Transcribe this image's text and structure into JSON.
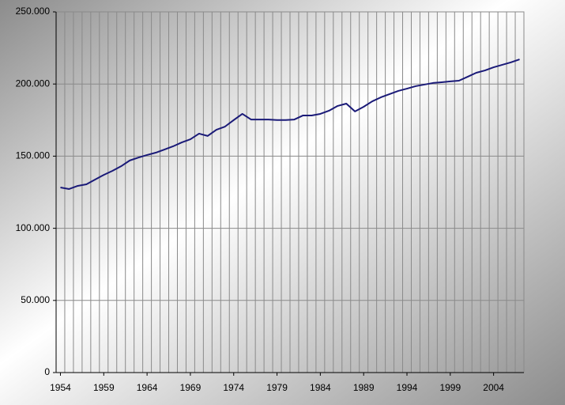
{
  "chart_data": {
    "type": "line",
    "x": [
      1954,
      1955,
      1956,
      1957,
      1958,
      1959,
      1960,
      1961,
      1962,
      1963,
      1964,
      1965,
      1966,
      1967,
      1968,
      1969,
      1970,
      1971,
      1972,
      1973,
      1974,
      1975,
      1976,
      1977,
      1978,
      1979,
      1980,
      1981,
      1982,
      1983,
      1984,
      1985,
      1986,
      1987,
      1988,
      1989,
      1990,
      1991,
      1992,
      1993,
      1994,
      1995,
      1996,
      1997,
      1998,
      1999,
      2000,
      2001,
      2002,
      2003,
      2004,
      2005,
      2006,
      2007
    ],
    "series": [
      {
        "color": "#1a1a78",
        "values": [
          128300,
          127200,
          129400,
          130500,
          133800,
          137000,
          139800,
          143000,
          147000,
          149000,
          150800,
          152400,
          154600,
          156800,
          159500,
          161700,
          165600,
          164000,
          168300,
          170500,
          175000,
          179300,
          175400,
          175400,
          175400,
          175000,
          175000,
          175400,
          178200,
          178200,
          179300,
          181500,
          184800,
          186400,
          181000,
          184200,
          188000,
          190800,
          193000,
          195200,
          196800,
          198500,
          199600,
          200700,
          201200,
          201800,
          202300,
          205000,
          207800,
          209400,
          211600,
          213300,
          215000,
          217100
        ]
      }
    ],
    "xlim": [
      1953.5,
      2007.5
    ],
    "xticks": [
      1954,
      1959,
      1964,
      1969,
      1974,
      1979,
      1984,
      1989,
      1994,
      1999,
      2004
    ],
    "ylim": [
      0,
      250000
    ],
    "yticks": [
      0,
      {
        "value": 50000,
        "label": "50.000"
      },
      {
        "value": 100000,
        "label": "100.000"
      },
      {
        "value": 150000,
        "label": "150.000"
      },
      {
        "value": 200000,
        "label": "200.000"
      },
      {
        "value": 250000,
        "label": "250.000"
      }
    ],
    "grid": true
  }
}
